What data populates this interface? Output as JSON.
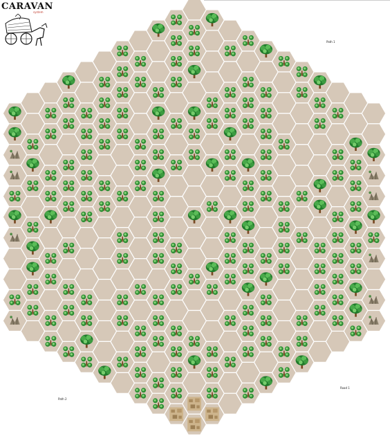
{
  "logo": {
    "title": "CARAVAN",
    "subtitle": "system",
    "art_icon": "caravan-wagon-icon"
  },
  "labels": {
    "path1": "Path 1",
    "path2": "Path 2",
    "road1": "Road 1"
  },
  "colors": {
    "hex_fill": "#d6c8b8",
    "hex_stroke": "#ffffff",
    "tree_dark": "#1f7a2a",
    "tree_light": "#6bc060",
    "tree_trunk": "#7a4a25",
    "rock": "#8a7f6a",
    "town": "#bfa57d"
  },
  "icons": {
    "forest": "forest-icon",
    "tree": "big-tree-icon",
    "rocks": "rough-terrain-icon",
    "town": "town-icon"
  }
}
